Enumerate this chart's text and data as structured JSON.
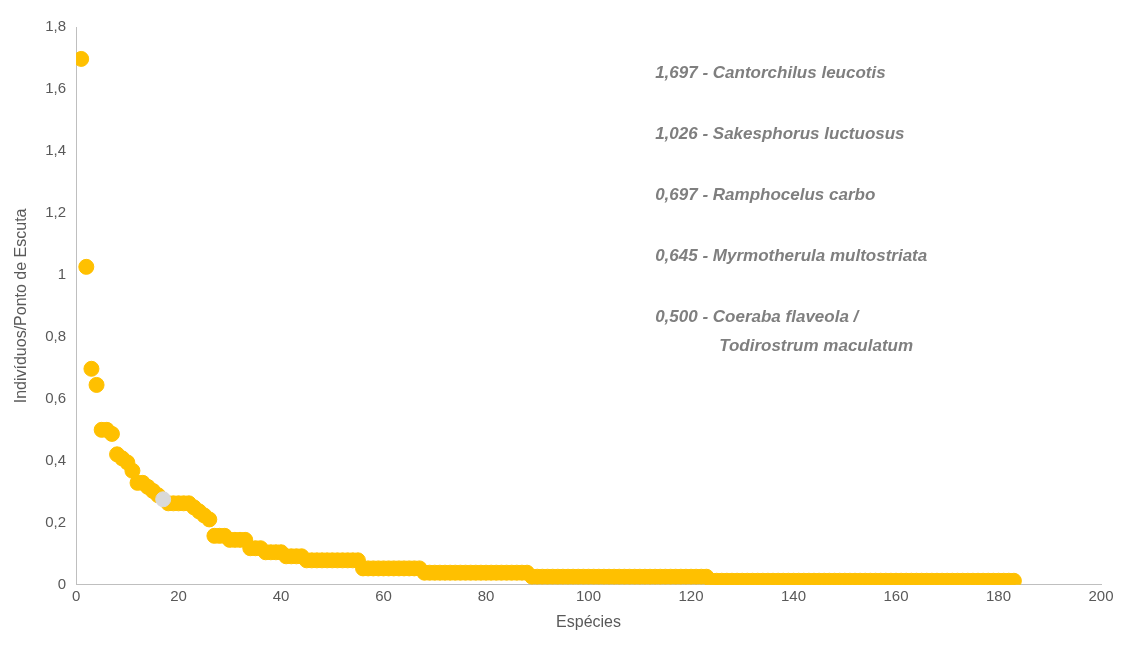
{
  "chart_data": {
    "type": "scatter",
    "xlabel": "Espécies",
    "ylabel": "Indivíduos/Ponto de Escuta",
    "xlim": [
      0,
      200
    ],
    "xticks": [
      0,
      20,
      40,
      60,
      80,
      100,
      120,
      140,
      160,
      180,
      200
    ],
    "ylim": [
      0,
      1.8
    ],
    "yticks": [
      0,
      {
        "value": 0.2,
        "label": "0,2"
      },
      {
        "value": 0.4,
        "label": "0,4"
      },
      {
        "value": 0.6,
        "label": "0,6"
      },
      {
        "value": 0.8,
        "label": "0,8"
      },
      1,
      {
        "value": 1.2,
        "label": "1,2"
      },
      {
        "value": 1.4,
        "label": "1,4"
      },
      {
        "value": 1.6,
        "label": "1,6"
      },
      {
        "value": 1.8,
        "label": "1,8"
      }
    ],
    "marker": "circle",
    "legend": false,
    "annotations": [
      "1,697 - Cantorchilus leucotis",
      "1,026 - Sakesphorus luctuosus",
      "0,697 - Ramphocelus carbo",
      "0,645 - Myrmotherula multostriata",
      "0,500 - Coeraba flaveola /\nTodirostrum maculatum"
    ],
    "series": [
      {
        "color": "#ffc000",
        "x": [
          1,
          2,
          3,
          4,
          5,
          6,
          7,
          8,
          9,
          10,
          11,
          12,
          13,
          14,
          15,
          16,
          18,
          19,
          20,
          21,
          22,
          23,
          24,
          25,
          26,
          27,
          28,
          29,
          30,
          31,
          32,
          33,
          34,
          35,
          36,
          37,
          38,
          39,
          40,
          41,
          42,
          43,
          44,
          45,
          46,
          47,
          48,
          49,
          50,
          51,
          52,
          53,
          54,
          55,
          56,
          57,
          58,
          59,
          60,
          61,
          62,
          63,
          64,
          65,
          66,
          67,
          68,
          69,
          70,
          71,
          72,
          73,
          74,
          75,
          76,
          77,
          78,
          79,
          80,
          81,
          82,
          83,
          84,
          85,
          86,
          87,
          88,
          89,
          90,
          91,
          92,
          93,
          94,
          95,
          96,
          97,
          98,
          99,
          100,
          101,
          102,
          103,
          104,
          105,
          106,
          107,
          108,
          109,
          110,
          111,
          112,
          113,
          114,
          115,
          116,
          117,
          118,
          119,
          120,
          121,
          122,
          123,
          124,
          125,
          126,
          127,
          128,
          129,
          130,
          131,
          132,
          133,
          134,
          135,
          136,
          137,
          138,
          139,
          140,
          141,
          142,
          143,
          144,
          145,
          146,
          147,
          148,
          149,
          150,
          151,
          152,
          153,
          154,
          155,
          156,
          157,
          158,
          159,
          160,
          161,
          162,
          163,
          164,
          165,
          166,
          167,
          168,
          169,
          170,
          171,
          172,
          173,
          174,
          175,
          176,
          177,
          178,
          179,
          180,
          181,
          182,
          183
        ],
        "values": [
          1.697,
          1.026,
          0.697,
          0.645,
          0.5,
          0.5,
          0.487,
          0.421,
          0.408,
          0.395,
          0.368,
          0.329,
          0.329,
          0.316,
          0.303,
          0.289,
          0.263,
          0.263,
          0.263,
          0.263,
          0.263,
          0.25,
          0.237,
          0.224,
          0.211,
          0.158,
          0.158,
          0.158,
          0.145,
          0.145,
          0.145,
          0.145,
          0.118,
          0.118,
          0.118,
          0.105,
          0.105,
          0.105,
          0.105,
          0.092,
          0.092,
          0.092,
          0.092,
          0.079,
          0.079,
          0.079,
          0.079,
          0.079,
          0.079,
          0.079,
          0.079,
          0.079,
          0.079,
          0.079,
          0.053,
          0.053,
          0.053,
          0.053,
          0.053,
          0.053,
          0.053,
          0.053,
          0.053,
          0.053,
          0.053,
          0.053,
          0.039,
          0.039,
          0.039,
          0.039,
          0.039,
          0.039,
          0.039,
          0.039,
          0.039,
          0.039,
          0.039,
          0.039,
          0.039,
          0.039,
          0.039,
          0.039,
          0.039,
          0.039,
          0.039,
          0.039,
          0.039,
          0.026,
          0.026,
          0.026,
          0.026,
          0.026,
          0.026,
          0.026,
          0.026,
          0.026,
          0.026,
          0.026,
          0.026,
          0.026,
          0.026,
          0.026,
          0.026,
          0.026,
          0.026,
          0.026,
          0.026,
          0.026,
          0.026,
          0.026,
          0.026,
          0.026,
          0.026,
          0.026,
          0.026,
          0.026,
          0.026,
          0.026,
          0.026,
          0.026,
          0.026,
          0.026,
          0.013,
          0.013,
          0.013,
          0.013,
          0.013,
          0.013,
          0.013,
          0.013,
          0.013,
          0.013,
          0.013,
          0.013,
          0.013,
          0.013,
          0.013,
          0.013,
          0.013,
          0.013,
          0.013,
          0.013,
          0.013,
          0.013,
          0.013,
          0.013,
          0.013,
          0.013,
          0.013,
          0.013,
          0.013,
          0.013,
          0.013,
          0.013,
          0.013,
          0.013,
          0.013,
          0.013,
          0.013,
          0.013,
          0.013,
          0.013,
          0.013,
          0.013,
          0.013,
          0.013,
          0.013,
          0.013,
          0.013,
          0.013,
          0.013,
          0.013,
          0.013,
          0.013,
          0.013,
          0.013,
          0.013,
          0.013,
          0.013,
          0.013,
          0.013,
          0.013
        ]
      },
      {
        "color": "#d9d9d9",
        "x": [
          17
        ],
        "values": [
          0.276
        ]
      }
    ]
  }
}
